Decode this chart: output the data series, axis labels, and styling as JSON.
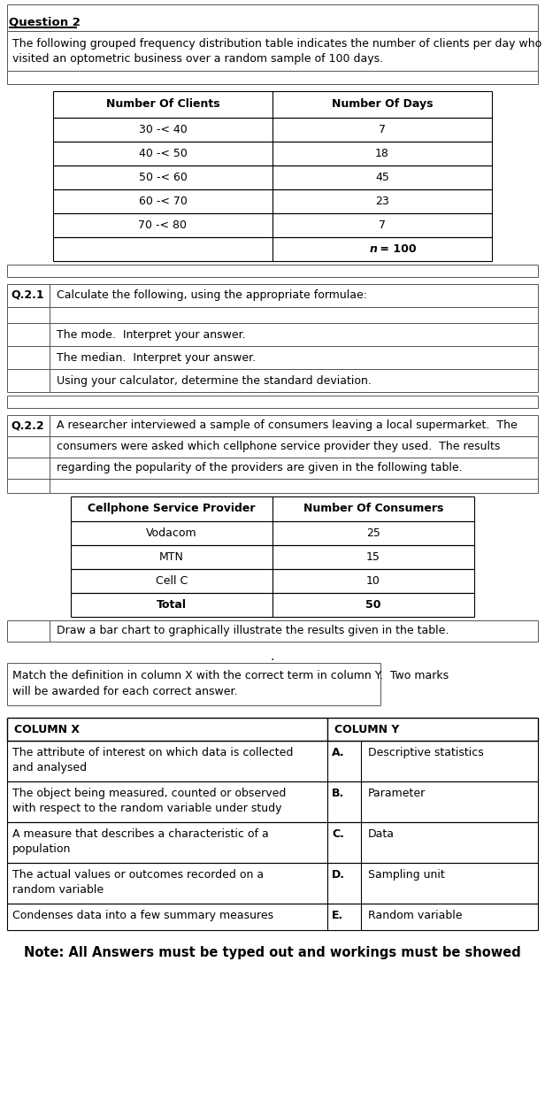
{
  "title": "Question 2",
  "intro_line1": "The following grouped frequency distribution table indicates the number of clients per day who",
  "intro_line2": "visited an optometric business over a random sample of 100 days.",
  "table1_headers": [
    "Number Of Clients",
    "Number Of Days"
  ],
  "table1_rows": [
    [
      "30 -< 40",
      "7"
    ],
    [
      "40 -< 50",
      "18"
    ],
    [
      "50 -< 60",
      "45"
    ],
    [
      "60 -< 70",
      "23"
    ],
    [
      "70 -< 80",
      "7"
    ],
    [
      "",
      "n = 100"
    ]
  ],
  "q21_label": "Q.2.1",
  "q21_text": "Calculate the following, using the appropriate formulae:",
  "q21_items": [
    "The mode.  Interpret your answer.",
    "The median.  Interpret your answer.",
    "Using your calculator, determine the standard deviation."
  ],
  "q22_label": "Q.2.2",
  "q22_line1": "A researcher interviewed a sample of consumers leaving a local supermarket.  The",
  "q22_line2": "consumers were asked which cellphone service provider they used.  The results",
  "q22_line3": "regarding the popularity of the providers are given in the following table.",
  "table2_headers": [
    "Cellphone Service Provider",
    "Number Of Consumers"
  ],
  "table2_rows": [
    [
      "Vodacom",
      "25"
    ],
    [
      "MTN",
      "15"
    ],
    [
      "Cell C",
      "10"
    ],
    [
      "Total",
      "50"
    ]
  ],
  "q22_draw_text": "Draw a bar chart to graphically illustrate the results given in the table.",
  "match_line1": "Match the definition in column X with the correct term in column Y.  Two marks",
  "match_line2": "will be awarded for each correct answer.",
  "col_headers": [
    "COLUMN X",
    "COLUMN Y"
  ],
  "col_rows_col1": [
    "The attribute of interest on which data is collected",
    "and analysed",
    "The object being measured, counted or observed",
    "with respect to the random variable under study",
    "A measure that describes a characteristic of a",
    "population",
    "The actual values or outcomes recorded on a",
    "random variable",
    "Condenses data into a few summary measures"
  ],
  "col_rows": [
    [
      "The attribute of interest on which data is collected\nand analysed",
      "A.",
      "Descriptive statistics"
    ],
    [
      "The object being measured, counted or observed\nwith respect to the random variable under study",
      "B.",
      "Parameter"
    ],
    [
      "A measure that describes a characteristic of a\npopulation",
      "C.",
      "Data"
    ],
    [
      "The actual values or outcomes recorded on a\nrandom variable",
      "D.",
      "Sampling unit"
    ],
    [
      "Condenses data into a few summary measures",
      "E.",
      "Random variable"
    ]
  ],
  "note_text": "Note: All Answers must be typed out and workings must be showed",
  "bg_color": "#ffffff",
  "text_color": "#000000",
  "line_color": "#888888",
  "bold_line_color": "#000000"
}
